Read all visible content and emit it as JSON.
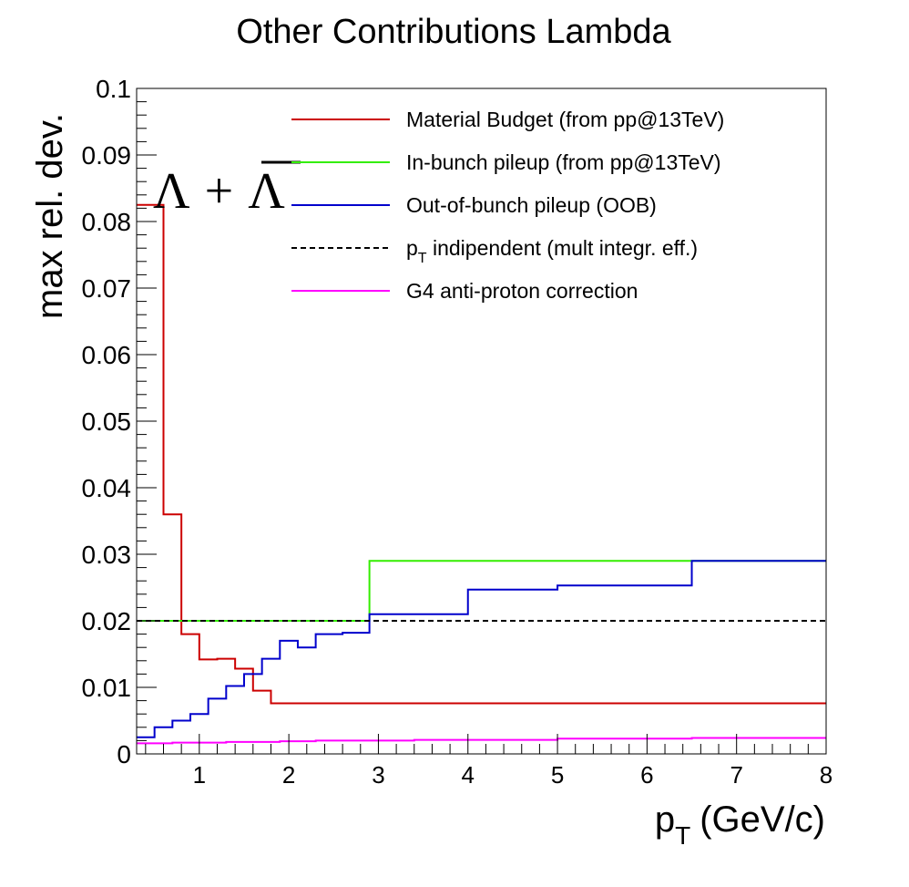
{
  "chart_data": {
    "type": "line",
    "title": "Other Contributions Lambda",
    "xlabel": "p",
    "xlabel_sub": "T",
    "xlabel_unit": "(GeV/c)",
    "ylabel": "max rel. dev.",
    "xlim": [
      0.3,
      8
    ],
    "ylim": [
      0,
      0.1
    ],
    "x_ticks": [
      1,
      2,
      3,
      4,
      5,
      6,
      7,
      8
    ],
    "y_ticks": [
      0,
      0.01,
      0.02,
      0.03,
      0.04,
      0.05,
      0.06,
      0.07,
      0.08,
      0.09,
      0.1
    ],
    "y_tick_labels": [
      "0",
      "0.01",
      "0.02",
      "0.03",
      "0.04",
      "0.05",
      "0.06",
      "0.07",
      "0.08",
      "0.09",
      "0.1"
    ],
    "annotation": {
      "particle": "Λ",
      "plus": "+",
      "antiparticle": "Λ"
    },
    "legend_position": "top-right",
    "series": [
      {
        "name": "Material Budget (from pp@13TeV)",
        "color": "#cc0000",
        "style": "step",
        "edges": [
          0.3,
          0.6,
          0.8,
          1.0,
          1.2,
          1.4,
          1.6,
          1.8,
          8.0
        ],
        "values": [
          0.0825,
          0.036,
          0.018,
          0.0142,
          0.0143,
          0.0128,
          0.0095,
          0.0076
        ]
      },
      {
        "name": "In-bunch pileup (from pp@13TeV)",
        "color": "#33ee00",
        "style": "step",
        "edges": [
          0.3,
          2.9,
          6.5,
          8.0
        ],
        "values": [
          0.02,
          0.029,
          0.029
        ]
      },
      {
        "name": "Out-of-bunch pileup (OOB)",
        "color": "#0000cc",
        "style": "step",
        "edges": [
          0.3,
          0.5,
          0.7,
          0.9,
          1.1,
          1.3,
          1.5,
          1.7,
          1.9,
          2.1,
          2.3,
          2.6,
          2.9,
          4.0,
          5.0,
          6.5,
          8.0
        ],
        "values": [
          0.0025,
          0.004,
          0.005,
          0.006,
          0.0083,
          0.0102,
          0.012,
          0.0143,
          0.017,
          0.016,
          0.018,
          0.0182,
          0.021,
          0.0247,
          0.0253,
          0.029
        ]
      },
      {
        "name": "p",
        "name_sub": "T",
        "name_rest": " indipendent (mult integr. eff.)",
        "color": "#000000",
        "style": "dashed",
        "edges": [
          0.3,
          8.0
        ],
        "values": [
          0.02
        ]
      },
      {
        "name": "G4 anti-proton correction",
        "color": "#ff00ff",
        "style": "step",
        "edges": [
          0.3,
          0.5,
          0.7,
          0.9,
          1.1,
          1.3,
          1.5,
          1.7,
          1.9,
          2.1,
          2.3,
          2.6,
          2.9,
          3.4,
          4.0,
          5.0,
          6.5,
          8.0
        ],
        "values": [
          0.0016,
          0.0016,
          0.0017,
          0.0017,
          0.0017,
          0.0018,
          0.0018,
          0.0018,
          0.0019,
          0.0019,
          0.002,
          0.002,
          0.002,
          0.0021,
          0.0021,
          0.0023,
          0.0024
        ]
      }
    ]
  }
}
